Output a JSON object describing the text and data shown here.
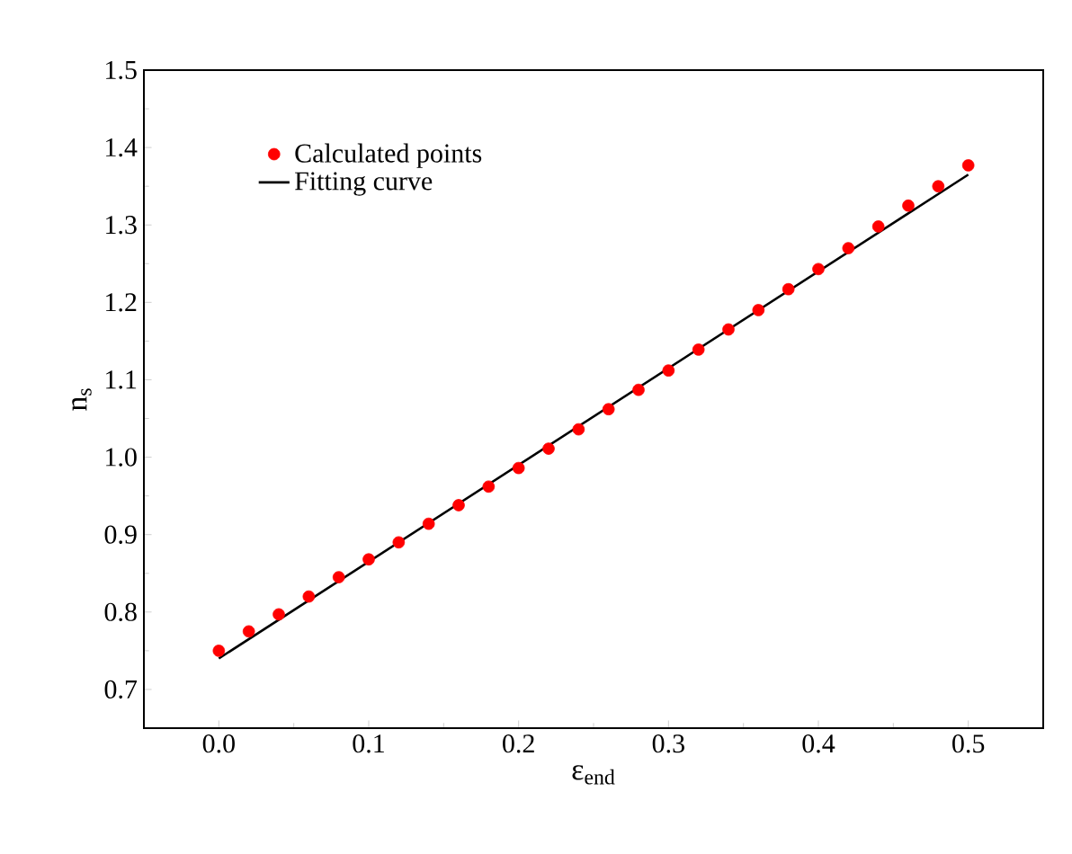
{
  "chart_data": {
    "type": "scatter",
    "xlabel": "ε$_{end}$",
    "ylabel": "n$_{s}$",
    "xlim": [
      -0.05,
      0.55
    ],
    "ylim": [
      0.65,
      1.5
    ],
    "xticks": [
      {
        "value": 0,
        "label": "0.0"
      },
      0.1,
      0.2,
      0.3,
      0.4,
      0.5
    ],
    "yticks": [
      0.7,
      0.8,
      0.9,
      {
        "value": 1,
        "label": "1.0"
      },
      1.1,
      1.2,
      1.3,
      1.4,
      1.5
    ],
    "legend": "top left",
    "marker": "circle",
    "grid": false,
    "series": [
      {
        "name": "Calculated points",
        "color": "#ff0000",
        "x": [
          0,
          0.02,
          0.04,
          0.06,
          0.08,
          0.1,
          0.12,
          0.14,
          0.16,
          0.18,
          0.2,
          0.22,
          0.24,
          0.26,
          0.28,
          0.3,
          0.32,
          0.34,
          0.36,
          0.38,
          0.4,
          0.42,
          0.44,
          0.46,
          0.48,
          0.5
        ],
        "values": [
          0.75,
          0.775,
          0.797,
          0.82,
          0.845,
          0.868,
          0.89,
          0.914,
          0.938,
          0.962,
          0.986,
          1.011,
          1.036,
          1.062,
          1.087,
          1.112,
          1.139,
          1.165,
          1.19,
          1.217,
          1.243,
          1.27,
          1.298,
          1.325,
          1.35,
          1.377
        ]
      },
      {
        "name": "Fitting curve",
        "type": "line",
        "marker": "none",
        "line_style": "solid",
        "color": "#000000",
        "x": [
          0,
          0.5
        ],
        "values": [
          0.74,
          1.365
        ]
      }
    ]
  }
}
